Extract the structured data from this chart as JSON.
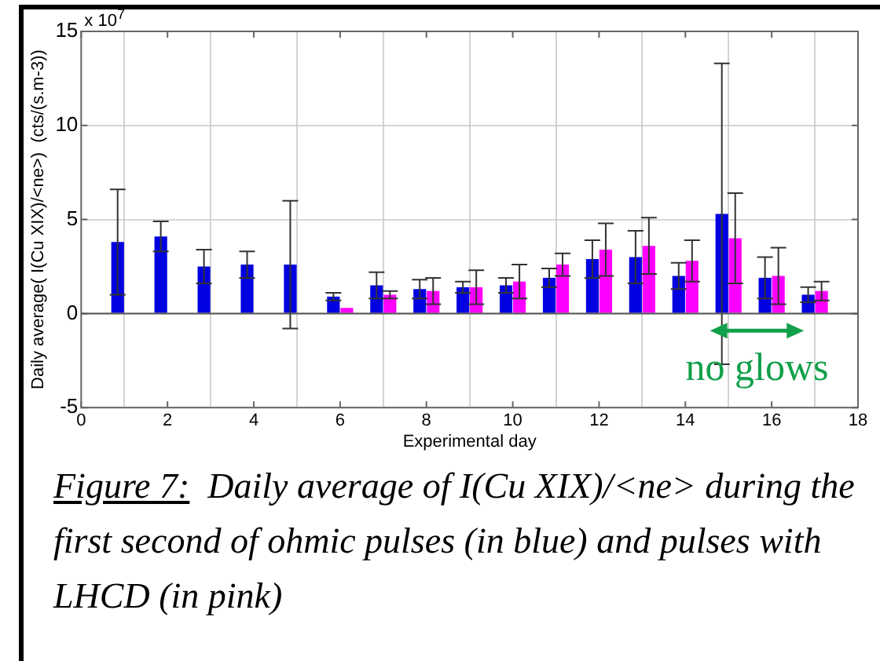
{
  "chart_data": {
    "type": "bar",
    "xlabel": "Experimental day",
    "ylabel": "Daily average( I(Cu XIX)/<ne>)  (cts/(s.m-3))",
    "x": [
      1,
      2,
      3,
      4,
      5,
      6,
      7,
      8,
      9,
      10,
      11,
      12,
      13,
      14,
      15,
      16,
      17
    ],
    "series": [
      {
        "color": "#0000e0",
        "values": [
          3.8,
          4.1,
          2.5,
          2.6,
          2.6,
          0.9,
          1.5,
          1.3,
          1.4,
          1.5,
          1.9,
          2.9,
          3.0,
          2.0,
          5.3,
          1.9,
          1.0
        ],
        "errors": [
          2.8,
          0.8,
          0.9,
          0.7,
          3.4,
          0.2,
          0.7,
          0.5,
          0.3,
          0.4,
          0.5,
          1.0,
          1.4,
          0.7,
          8.0,
          1.1,
          0.4
        ]
      },
      {
        "color": "#ff00ff",
        "values": [
          0,
          0,
          0,
          0,
          0,
          0.3,
          1.0,
          1.2,
          1.4,
          1.7,
          2.6,
          3.4,
          3.6,
          2.8,
          4.0,
          2.0,
          1.2
        ],
        "errors": [
          null,
          null,
          null,
          null,
          null,
          null,
          0.2,
          0.7,
          0.9,
          0.9,
          0.6,
          1.4,
          1.5,
          1.1,
          2.4,
          1.5,
          0.5
        ]
      }
    ],
    "xlim": [
      0,
      18
    ],
    "xticks": [
      0,
      2,
      4,
      6,
      8,
      10,
      12,
      14,
      16,
      18
    ],
    "ylim": [
      -5,
      15
    ],
    "yticks": [
      -5,
      0,
      5,
      10,
      15
    ],
    "grid": true,
    "legend": false,
    "annotations": [
      "no glows",
      "x 10$^{7}$",
      "Figure 7:",
      "Daily average of I(Cu XIX)/<ne> during the first second of ohmic pulses (in blue) and pulses with LHCD (in pink)"
    ]
  }
}
